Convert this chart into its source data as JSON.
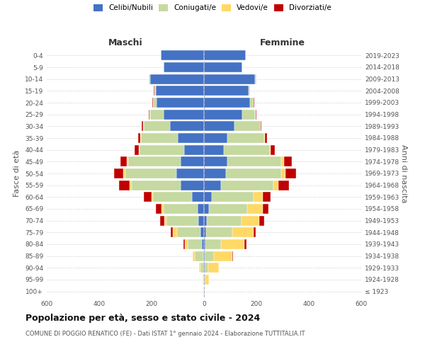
{
  "age_groups": [
    "100+",
    "95-99",
    "90-94",
    "85-89",
    "80-84",
    "75-79",
    "70-74",
    "65-69",
    "60-64",
    "55-59",
    "50-54",
    "45-49",
    "40-44",
    "35-39",
    "30-34",
    "25-29",
    "20-24",
    "15-19",
    "10-14",
    "5-9",
    "0-4"
  ],
  "birth_years": [
    "≤ 1923",
    "1924-1928",
    "1929-1933",
    "1934-1938",
    "1939-1943",
    "1944-1948",
    "1949-1953",
    "1954-1958",
    "1959-1963",
    "1964-1968",
    "1969-1973",
    "1974-1978",
    "1979-1983",
    "1984-1988",
    "1989-1993",
    "1994-1998",
    "1999-2003",
    "2004-2008",
    "2009-2013",
    "2014-2018",
    "2019-2023"
  ],
  "maschi": {
    "celibi": [
      1,
      1,
      2,
      4,
      8,
      14,
      22,
      25,
      45,
      90,
      105,
      90,
      75,
      100,
      130,
      155,
      180,
      185,
      205,
      155,
      165
    ],
    "coniugati": [
      1,
      3,
      12,
      30,
      55,
      90,
      120,
      130,
      150,
      185,
      195,
      200,
      170,
      140,
      100,
      50,
      15,
      5,
      5,
      0,
      0
    ],
    "vedovi": [
      0,
      1,
      4,
      8,
      10,
      15,
      10,
      8,
      5,
      8,
      8,
      5,
      5,
      2,
      2,
      2,
      0,
      0,
      0,
      0,
      0
    ],
    "divorziati": [
      0,
      0,
      0,
      1,
      5,
      8,
      15,
      20,
      30,
      40,
      35,
      25,
      15,
      8,
      5,
      3,
      2,
      1,
      0,
      0,
      0
    ]
  },
  "femmine": {
    "nubili": [
      1,
      1,
      2,
      3,
      5,
      8,
      12,
      20,
      30,
      65,
      85,
      90,
      75,
      90,
      115,
      145,
      175,
      170,
      195,
      145,
      160
    ],
    "coniugate": [
      1,
      4,
      15,
      35,
      60,
      100,
      130,
      145,
      160,
      200,
      210,
      205,
      175,
      140,
      100,
      50,
      15,
      5,
      5,
      0,
      0
    ],
    "vedove": [
      2,
      15,
      40,
      70,
      90,
      80,
      70,
      60,
      35,
      20,
      15,
      10,
      5,
      3,
      2,
      1,
      0,
      0,
      0,
      0,
      0
    ],
    "divorziate": [
      0,
      0,
      1,
      2,
      8,
      10,
      18,
      22,
      30,
      40,
      40,
      30,
      15,
      8,
      3,
      3,
      1,
      0,
      0,
      0,
      0
    ]
  },
  "colors": {
    "celibi": "#4472C4",
    "coniugati": "#C5D9A0",
    "vedovi": "#FFD966",
    "divorziati": "#C00000"
  },
  "xlim": 600,
  "title": "Popolazione per età, sesso e stato civile - 2024",
  "subtitle": "COMUNE DI POGGIO RENATICO (FE) - Dati ISTAT 1° gennaio 2024 - Elaborazione TUTTITALIA.IT",
  "ylabel_left": "Fasce di età",
  "ylabel_right": "Anni di nascita",
  "xlabel_maschi": "Maschi",
  "xlabel_femmine": "Femmine",
  "legend_labels": [
    "Celibi/Nubili",
    "Coniugati/e",
    "Vedovi/e",
    "Divorziati/e"
  ]
}
